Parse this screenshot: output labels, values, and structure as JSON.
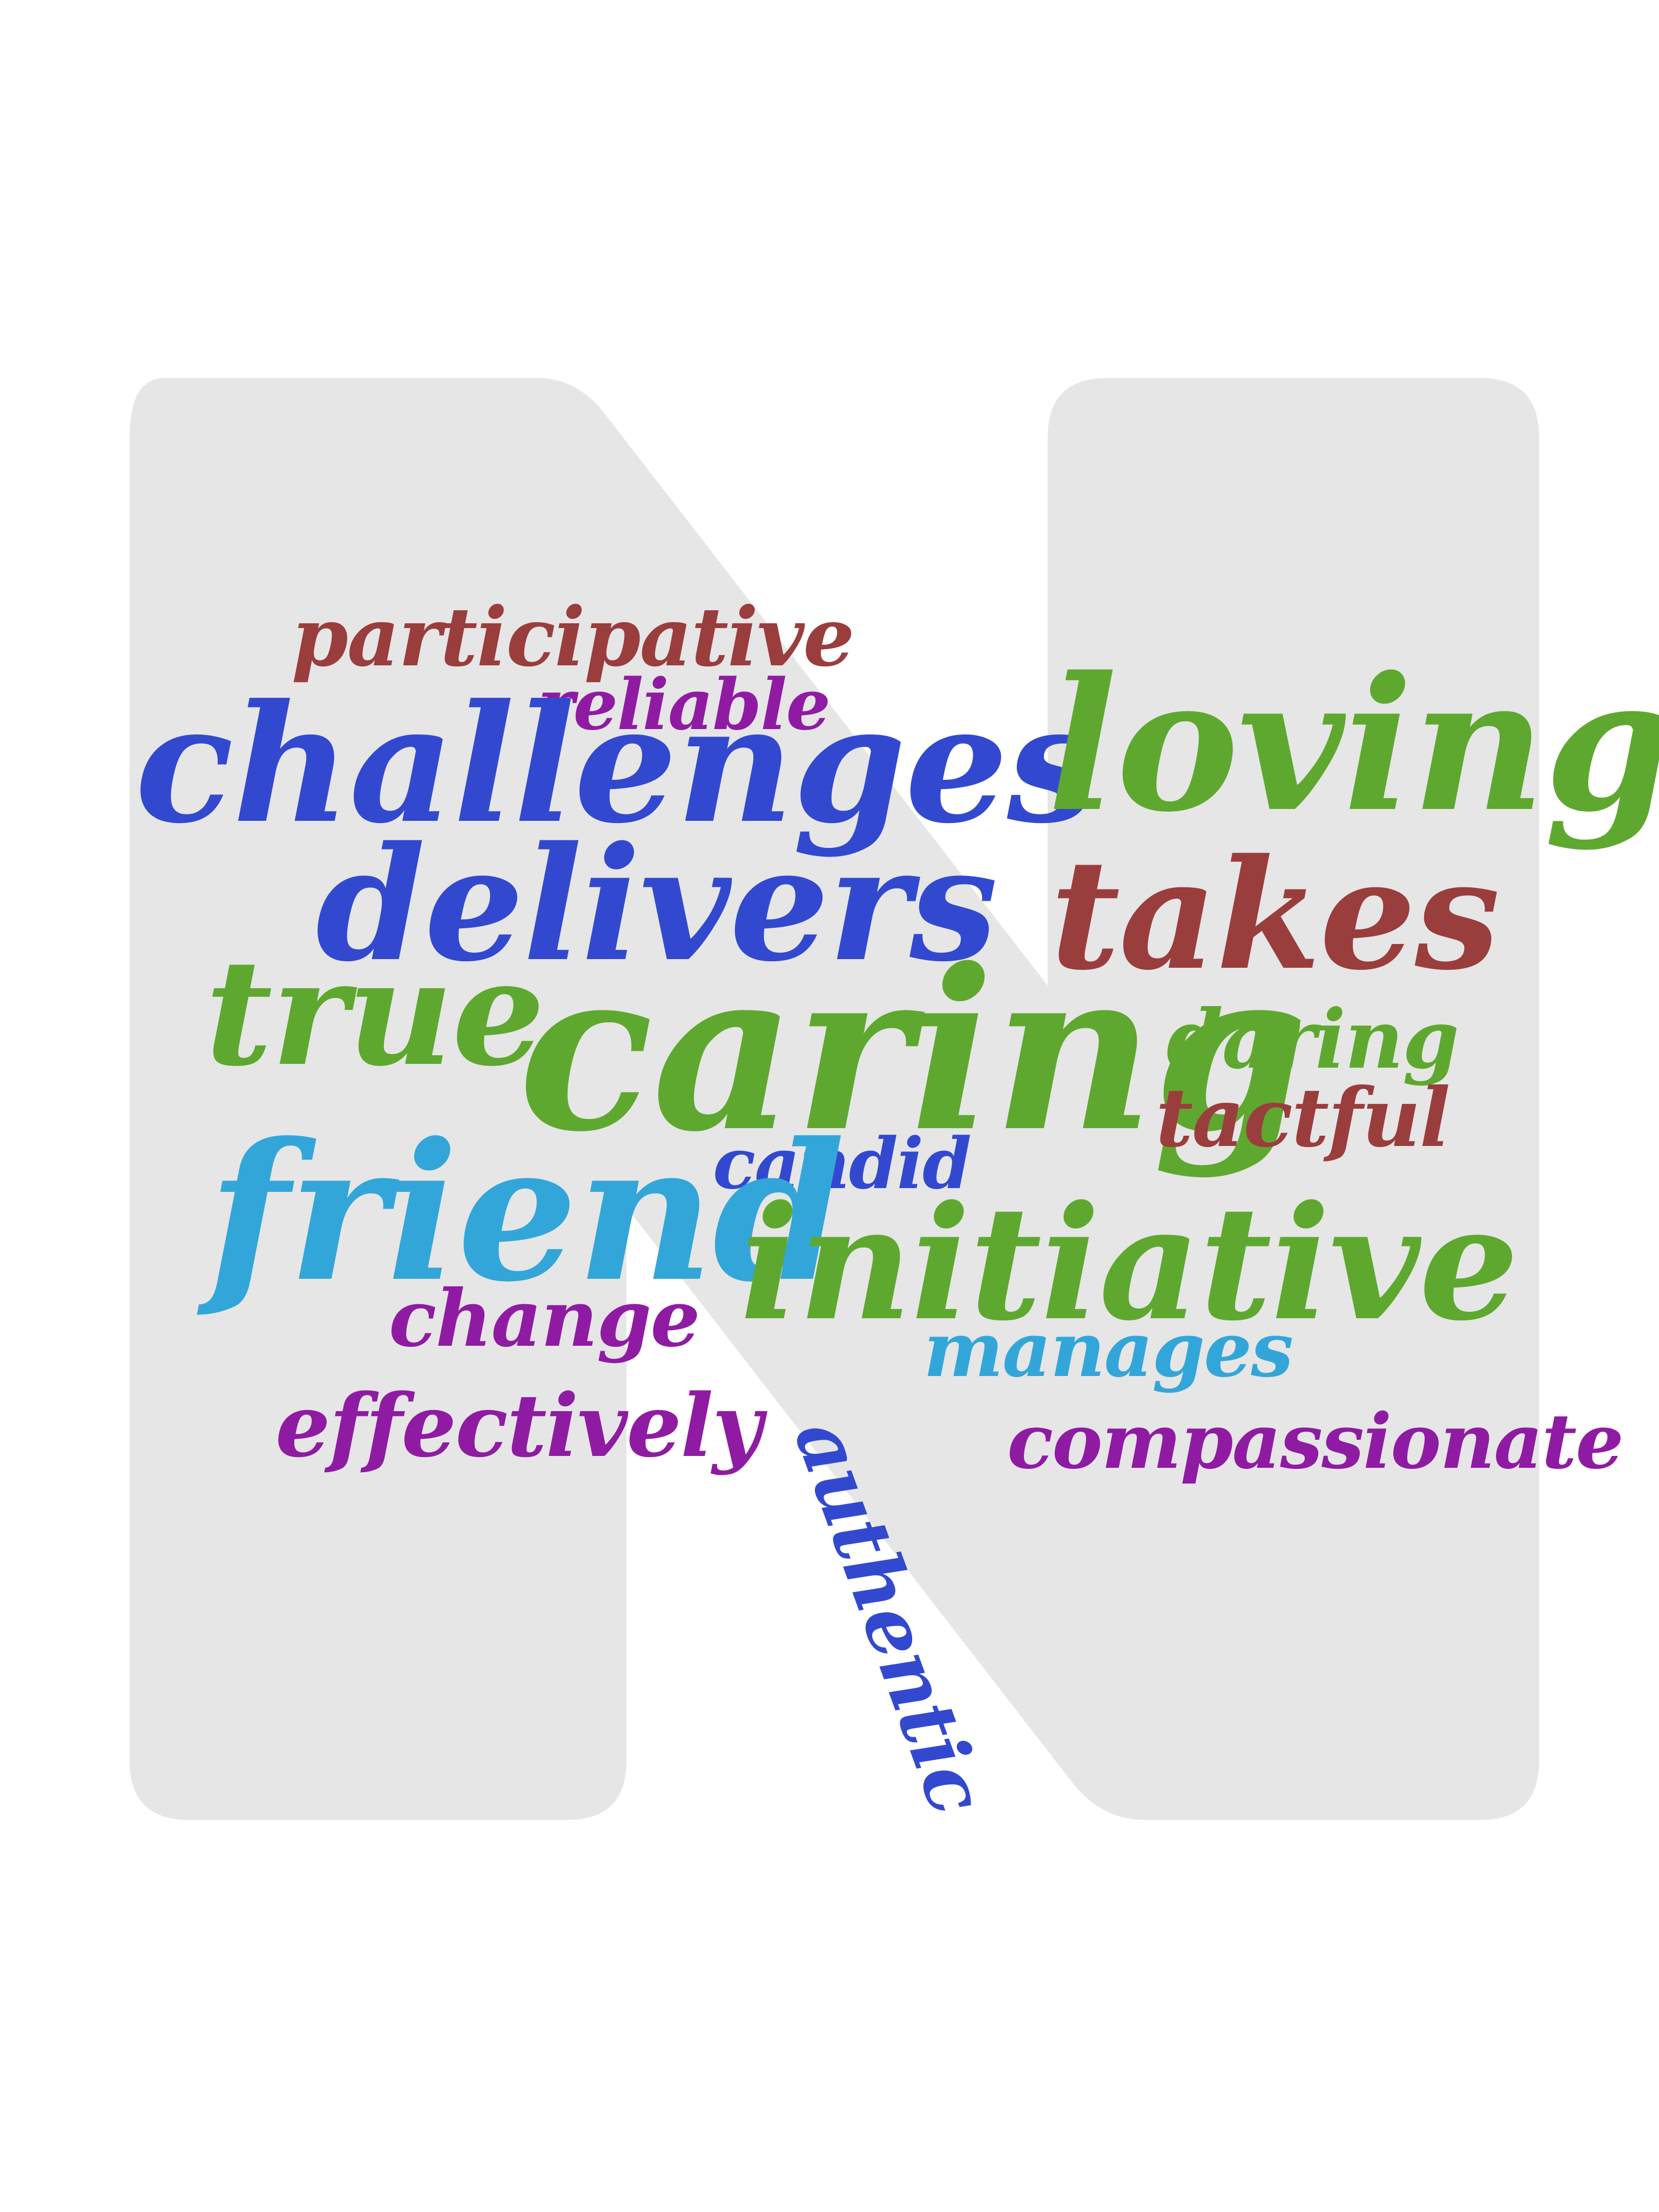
{
  "colors": {
    "letter_fill": "#e6e6e6",
    "background": "#ffffff",
    "blue": "#3249cf",
    "green": "#5ea82f",
    "red": "#9a3d3d",
    "cyan": "#33a6d9",
    "purple": "#8f1ba3"
  },
  "shape": "letter-N",
  "words": {
    "participative": "participative",
    "reliable": "reliable",
    "challenges": "challenges",
    "loving": "loving",
    "delivers": "delivers",
    "takes": "takes",
    "true": "true",
    "caring": "caring",
    "daring": "daring",
    "tactful": "tactful",
    "candid": "candid",
    "friend": "friend",
    "initiative": "initiative",
    "change": "change",
    "manages": "manages",
    "effectively": "effectively",
    "compassionate": "compassionate",
    "authentic": "authentic"
  }
}
